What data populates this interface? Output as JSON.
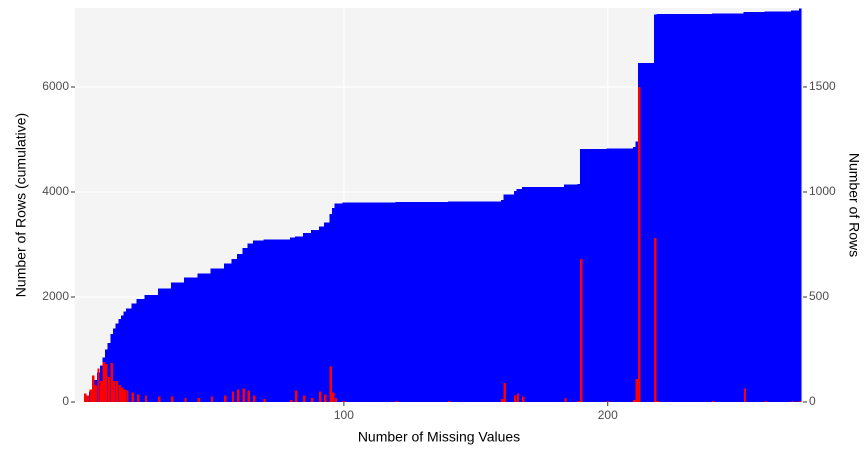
{
  "chart_data": {
    "type": "bar",
    "xlabel": "Number of Missing Values",
    "ylabel": "Number of Rows (cumulative)",
    "y2label": "Number of Rows",
    "x": [
      2,
      3,
      4,
      5,
      6,
      7,
      8,
      9,
      10,
      11,
      12,
      13,
      14,
      15,
      16,
      17,
      18,
      20,
      22,
      25,
      30,
      35,
      40,
      45,
      50,
      55,
      58,
      60,
      62,
      64,
      66,
      70,
      80,
      82,
      85,
      88,
      91,
      93,
      95,
      96,
      97,
      100,
      120,
      140,
      160,
      161,
      165,
      166,
      168,
      184,
      189,
      190,
      200,
      210,
      211,
      212,
      218,
      219,
      240,
      252,
      260,
      270,
      273
    ],
    "series": [
      {
        "color": "#0000ff",
        "axis": "y",
        "values": [
          50,
          100,
          200,
          330,
          420,
          560,
          700,
          850,
          1000,
          1120,
          1300,
          1400,
          1500,
          1580,
          1650,
          1720,
          1780,
          1880,
          1960,
          2040,
          2160,
          2280,
          2370,
          2450,
          2540,
          2640,
          2720,
          2820,
          2930,
          3020,
          3080,
          3100,
          3130,
          3150,
          3220,
          3280,
          3340,
          3420,
          3580,
          3700,
          3780,
          3800,
          3810,
          3820,
          3850,
          3950,
          4020,
          4060,
          4100,
          4140,
          4150,
          4820,
          4830,
          4860,
          4960,
          6460,
          7380,
          7390,
          7400,
          7430,
          7440,
          7460,
          7500
        ]
      },
      {
        "color": "#ff0000",
        "axis": "y2",
        "values": [
          40,
          30,
          60,
          125,
          80,
          160,
          100,
          190,
          180,
          120,
          185,
          100,
          100,
          80,
          70,
          60,
          55,
          45,
          35,
          30,
          25,
          25,
          20,
          20,
          25,
          30,
          50,
          60,
          65,
          55,
          30,
          15,
          10,
          55,
          30,
          20,
          50,
          35,
          170,
          45,
          20,
          5,
          5,
          5,
          15,
          90,
          30,
          40,
          25,
          20,
          5,
          680,
          5,
          10,
          110,
          1500,
          780,
          5,
          5,
          65,
          5,
          5,
          5
        ]
      }
    ],
    "xlim": [
      -1.9,
      274
    ],
    "xticks": [
      100,
      200
    ],
    "ylim": [
      0,
      7505
    ],
    "yticks": [
      0,
      2000,
      4000,
      6000
    ],
    "y2lim": [
      0,
      1876
    ],
    "y2ticks": [
      0,
      500,
      1000,
      1500
    ],
    "grid": true
  }
}
